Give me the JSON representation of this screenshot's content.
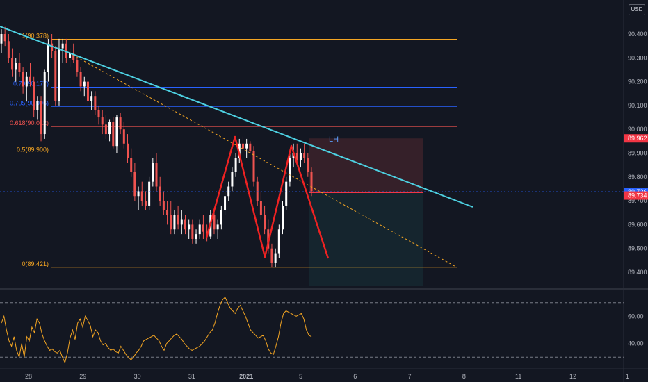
{
  "currency": "USD",
  "chart_data": {
    "type": "candlestick",
    "colors": {
      "background": "#131722",
      "up": "#ffffff",
      "down": "#ef5350",
      "fib": "#f5a623",
      "fib_blue": "#2962ff",
      "fib_red": "#ef5350",
      "trendline": "#4dd0e1",
      "pattern": "#ef2222",
      "rsi": "#f5a623",
      "price_blue": "#2962ff",
      "price_red": "#f23645"
    },
    "price_axis": {
      "min": 89.35,
      "max": 90.45,
      "ticks": [
        "90.400",
        "90.300",
        "90.200",
        "90.100",
        "90.000",
        "89.900",
        "89.800",
        "89.700",
        "89.600",
        "89.500",
        "89.400"
      ]
    },
    "x_axis": {
      "labels": [
        {
          "label": "28",
          "pos": 0
        },
        {
          "label": "29",
          "pos": 1
        },
        {
          "label": "30",
          "pos": 2
        },
        {
          "label": "31",
          "pos": 3
        },
        {
          "label": "2021",
          "pos": 4
        },
        {
          "label": "5",
          "pos": 5
        },
        {
          "label": "6",
          "pos": 6
        },
        {
          "label": "7",
          "pos": 7
        },
        {
          "label": "8",
          "pos": 8
        },
        {
          "label": "11",
          "pos": 9
        },
        {
          "label": "12",
          "pos": 10
        },
        {
          "label": "1",
          "pos": 11
        }
      ]
    },
    "fib_levels": [
      {
        "ratio": "1",
        "price": 90.378,
        "label": "1(90.378)",
        "color": "#f5a623"
      },
      {
        "ratio": "0.79",
        "price": 90.177,
        "label": "0.79(90.177)",
        "color": "#2962ff"
      },
      {
        "ratio": "0.705",
        "price": 90.096,
        "label": "0.705(90.096)",
        "color": "#2962ff"
      },
      {
        "ratio": "0.618",
        "price": 90.012,
        "label": "0.618(90.012)",
        "color": "#ef5350"
      },
      {
        "ratio": "0.5",
        "price": 89.9,
        "label": "0.5(89.900)",
        "color": "#f5a623"
      },
      {
        "ratio": "0",
        "price": 89.421,
        "label": "0(89.421)",
        "color": "#f5a623"
      }
    ],
    "annotations": [
      {
        "text": "LH",
        "x_pos": 5.6,
        "price": 89.98
      }
    ],
    "price_labels": [
      {
        "value": "89.962",
        "price": 89.962,
        "color": "#f23645"
      },
      {
        "value": "89.736",
        "price": 89.738,
        "color": "#2962ff"
      },
      {
        "value": "89.734",
        "price": 89.722,
        "color": "#f23645"
      }
    ],
    "rsi": {
      "ticks": [
        "60.00",
        "40.00"
      ],
      "upper": 70,
      "lower": 30,
      "min": 24,
      "max": 78,
      "values": [
        55,
        60,
        50,
        42,
        38,
        45,
        35,
        30,
        40,
        30,
        45,
        42,
        52,
        48,
        58,
        55,
        47,
        42,
        38,
        35,
        36,
        34,
        33,
        35,
        30,
        26,
        33,
        44,
        50,
        43,
        55,
        58,
        52,
        60,
        57,
        53,
        45,
        50,
        48,
        42,
        39,
        40,
        37,
        35,
        36,
        34,
        33,
        38,
        35,
        32,
        30,
        28,
        30,
        33,
        35,
        38,
        42,
        43,
        44,
        45,
        46,
        44,
        42,
        38,
        35,
        40,
        42,
        44,
        46,
        47,
        45,
        43,
        40,
        38,
        36,
        35,
        36,
        37,
        38,
        40,
        42,
        45,
        48,
        50,
        55,
        62,
        68,
        72,
        74,
        70,
        66,
        64,
        62,
        66,
        68,
        64,
        60,
        55,
        50,
        48,
        46,
        44,
        45,
        46,
        42,
        36,
        33,
        32,
        38,
        45,
        55,
        62,
        64,
        63,
        62,
        61,
        60,
        61,
        62,
        58,
        50,
        46,
        45
      ]
    },
    "candles": [
      [
        90.36,
        90.42,
        90.32,
        90.4
      ],
      [
        90.4,
        90.43,
        90.35,
        90.37
      ],
      [
        90.37,
        90.4,
        90.28,
        90.3
      ],
      [
        90.3,
        90.34,
        90.22,
        90.25
      ],
      [
        90.25,
        90.3,
        90.2,
        90.28
      ],
      [
        90.28,
        90.32,
        90.22,
        90.24
      ],
      [
        90.24,
        90.26,
        90.15,
        90.18
      ],
      [
        90.18,
        90.24,
        90.12,
        90.22
      ],
      [
        90.22,
        90.28,
        90.18,
        90.2
      ],
      [
        90.2,
        90.22,
        90.05,
        90.08
      ],
      [
        90.08,
        90.14,
        90.04,
        90.12
      ],
      [
        90.12,
        90.14,
        89.95,
        89.98
      ],
      [
        89.98,
        90.25,
        89.96,
        90.24
      ],
      [
        90.24,
        90.38,
        90.2,
        90.36
      ],
      [
        90.36,
        90.4,
        90.3,
        90.33
      ],
      [
        90.33,
        90.35,
        90.1,
        90.12
      ],
      [
        90.12,
        90.38,
        90.1,
        90.34
      ],
      [
        90.34,
        90.38,
        90.28,
        90.36
      ],
      [
        90.36,
        90.38,
        90.28,
        90.3
      ],
      [
        90.3,
        90.34,
        90.26,
        90.32
      ],
      [
        90.32,
        90.36,
        90.28,
        90.29
      ],
      [
        90.29,
        90.31,
        90.22,
        90.24
      ],
      [
        90.24,
        90.26,
        90.16,
        90.18
      ],
      [
        90.18,
        90.22,
        90.14,
        90.2
      ],
      [
        90.2,
        90.21,
        90.1,
        90.12
      ],
      [
        90.12,
        90.16,
        90.08,
        90.14
      ],
      [
        90.14,
        90.16,
        90.06,
        90.08
      ],
      [
        90.08,
        90.1,
        90.02,
        90.05
      ],
      [
        90.05,
        90.08,
        89.98,
        90.02
      ],
      [
        90.02,
        90.06,
        89.96,
        89.98
      ],
      [
        89.98,
        90.04,
        89.95,
        90.03
      ],
      [
        90.03,
        90.05,
        89.92,
        89.93
      ],
      [
        89.93,
        90.06,
        89.9,
        90.05
      ],
      [
        90.05,
        90.07,
        89.98,
        90.0
      ],
      [
        90.0,
        90.03,
        89.92,
        89.94
      ],
      [
        89.94,
        89.98,
        89.86,
        89.88
      ],
      [
        89.88,
        89.92,
        89.8,
        89.82
      ],
      [
        89.82,
        89.86,
        89.7,
        89.72
      ],
      [
        89.72,
        89.76,
        89.66,
        89.74
      ],
      [
        89.74,
        89.78,
        89.68,
        89.7
      ],
      [
        89.7,
        89.74,
        89.66,
        89.68
      ],
      [
        89.68,
        89.8,
        89.66,
        89.78
      ],
      [
        89.78,
        89.88,
        89.76,
        89.86
      ],
      [
        89.86,
        89.9,
        89.74,
        89.76
      ],
      [
        89.76,
        89.8,
        89.68,
        89.7
      ],
      [
        89.7,
        89.74,
        89.64,
        89.66
      ],
      [
        89.66,
        89.7,
        89.6,
        89.64
      ],
      [
        89.64,
        89.7,
        89.56,
        89.58
      ],
      [
        89.58,
        89.66,
        89.56,
        89.64
      ],
      [
        89.64,
        89.68,
        89.58,
        89.6
      ],
      [
        89.6,
        89.66,
        89.56,
        89.62
      ],
      [
        89.62,
        89.64,
        89.56,
        89.58
      ],
      [
        89.58,
        89.62,
        89.54,
        89.6
      ],
      [
        89.6,
        89.62,
        89.52,
        89.54
      ],
      [
        89.54,
        89.58,
        89.52,
        89.56
      ],
      [
        89.56,
        89.62,
        89.54,
        89.6
      ],
      [
        89.6,
        89.64,
        89.54,
        89.57
      ],
      [
        89.57,
        89.6,
        89.53,
        89.55
      ],
      [
        89.55,
        89.66,
        89.54,
        89.64
      ],
      [
        89.64,
        89.66,
        89.56,
        89.58
      ],
      [
        89.58,
        89.62,
        89.54,
        89.6
      ],
      [
        89.6,
        89.68,
        89.58,
        89.66
      ],
      [
        89.66,
        89.74,
        89.64,
        89.72
      ],
      [
        89.72,
        89.78,
        89.7,
        89.76
      ],
      [
        89.76,
        89.84,
        89.74,
        89.82
      ],
      [
        89.82,
        89.9,
        89.8,
        89.88
      ],
      [
        89.88,
        89.96,
        89.86,
        89.94
      ],
      [
        89.94,
        89.97,
        89.9,
        89.92
      ],
      [
        89.92,
        89.96,
        89.88,
        89.94
      ],
      [
        89.94,
        89.95,
        89.9,
        89.91
      ],
      [
        89.91,
        89.93,
        89.76,
        89.78
      ],
      [
        89.78,
        89.8,
        89.68,
        89.7
      ],
      [
        89.7,
        89.74,
        89.62,
        89.64
      ],
      [
        89.64,
        89.68,
        89.56,
        89.58
      ],
      [
        89.58,
        89.62,
        89.48,
        89.5
      ],
      [
        89.5,
        89.52,
        89.42,
        89.44
      ],
      [
        89.44,
        89.5,
        89.42,
        89.48
      ],
      [
        89.48,
        89.6,
        89.46,
        89.58
      ],
      [
        89.58,
        89.7,
        89.56,
        89.68
      ],
      [
        89.68,
        89.8,
        89.66,
        89.78
      ],
      [
        89.78,
        89.9,
        89.76,
        89.88
      ],
      [
        89.88,
        89.94,
        89.84,
        89.9
      ],
      [
        89.9,
        89.94,
        89.85,
        89.87
      ],
      [
        89.87,
        89.92,
        89.84,
        89.9
      ],
      [
        89.9,
        89.94,
        89.86,
        89.88
      ],
      [
        89.88,
        89.9,
        89.8,
        89.82
      ],
      [
        89.82,
        89.84,
        89.72,
        89.74
      ]
    ]
  }
}
